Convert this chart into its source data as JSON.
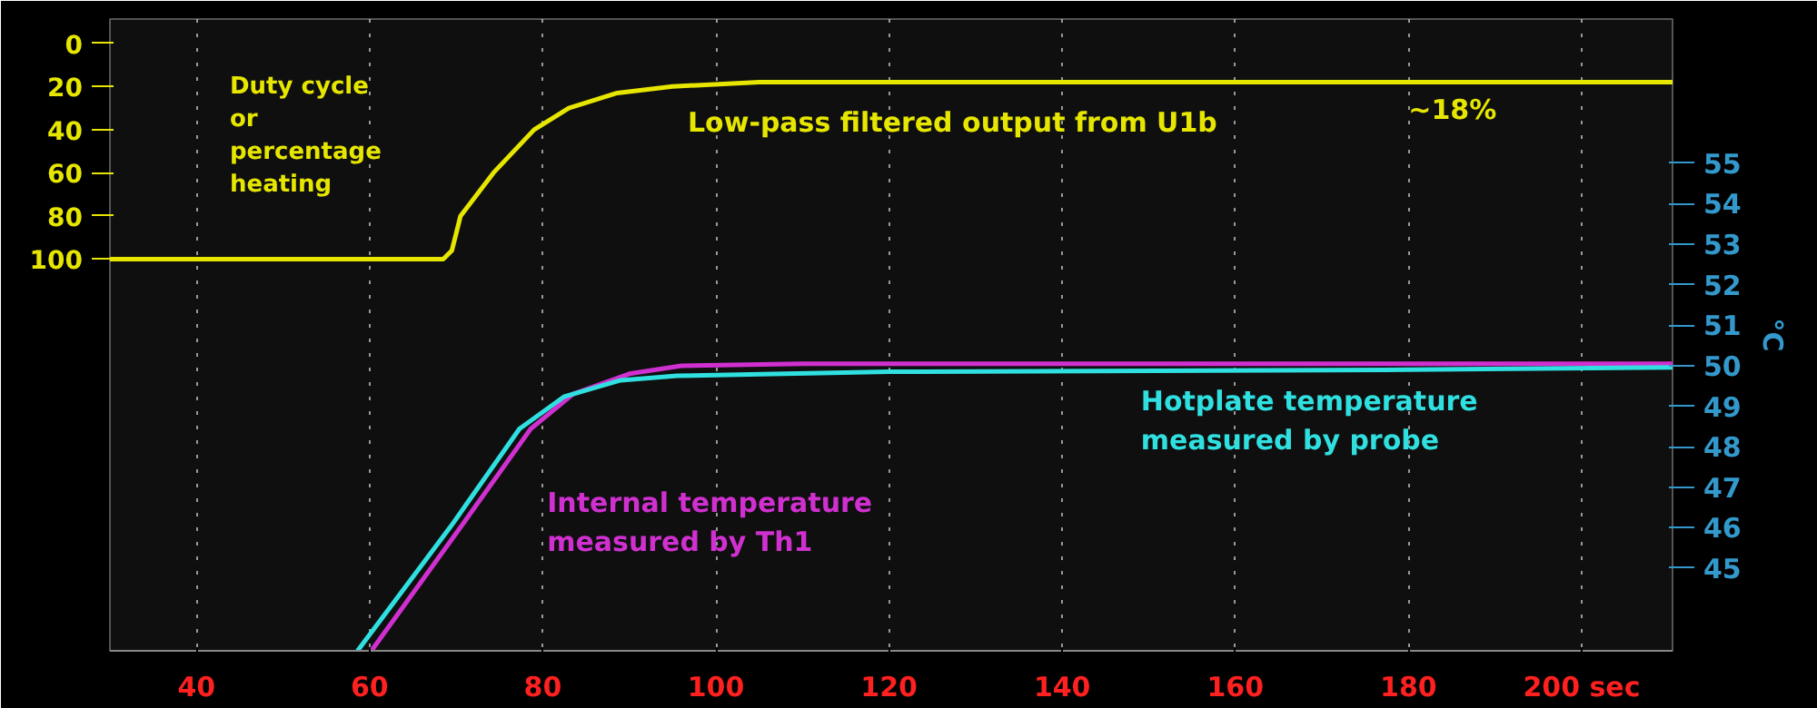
{
  "chart_data": {
    "type": "line",
    "ylabel": "Duty cycle or percentage heating",
    "y2label": "°C",
    "xlim": [
      30,
      210.5
    ],
    "xticks": [
      40,
      60,
      80,
      100,
      120,
      140,
      160,
      180,
      {
        "value": 200,
        "label": "200 sec"
      }
    ],
    "ylim": [
      281.5,
      -11.25
    ],
    "yticks": [
      0,
      20,
      40,
      60,
      80,
      100
    ],
    "y2lim": [
      42.96,
      58.56
    ],
    "y2ticks": [
      45,
      46,
      47,
      48,
      49,
      50,
      51,
      52,
      53,
      54,
      55
    ],
    "grid": "x",
    "line_style": "solid",
    "marker": "none",
    "annotations": [
      {
        "text": "~18%",
        "x": 180,
        "y": 18
      }
    ],
    "series": [
      {
        "name": "Low-pass filtered output from U1b",
        "color": "#e6e600",
        "x": [
          30,
          68.5,
          69.5,
          70.5,
          74.3,
          79,
          83,
          88.6,
          95,
          105,
          210.5
        ],
        "values": [
          100,
          100,
          96,
          80,
          60,
          40,
          30,
          23,
          20,
          18,
          18
        ]
      },
      {
        "name": "Internal temperature\nmeasured by Th1",
        "color": "#d030d0",
        "axis": "y2",
        "x": [
          60.2,
          70.6,
          78.6,
          83.5,
          90,
          96,
          110,
          210.5
        ],
        "values": [
          42.96,
          46.04,
          48.44,
          49.3,
          49.8,
          50,
          50.05,
          50.05
        ]
      },
      {
        "name": "Hotplate temperature\nmeasured by probe",
        "color": "#30e0e0",
        "axis": "y2",
        "x": [
          58.6,
          69.4,
          77.3,
          82.5,
          89,
          95.5,
          120,
          180,
          210.5
        ],
        "values": [
          42.96,
          46.04,
          48.44,
          49.24,
          49.64,
          49.75,
          49.85,
          49.9,
          49.96
        ]
      }
    ]
  }
}
